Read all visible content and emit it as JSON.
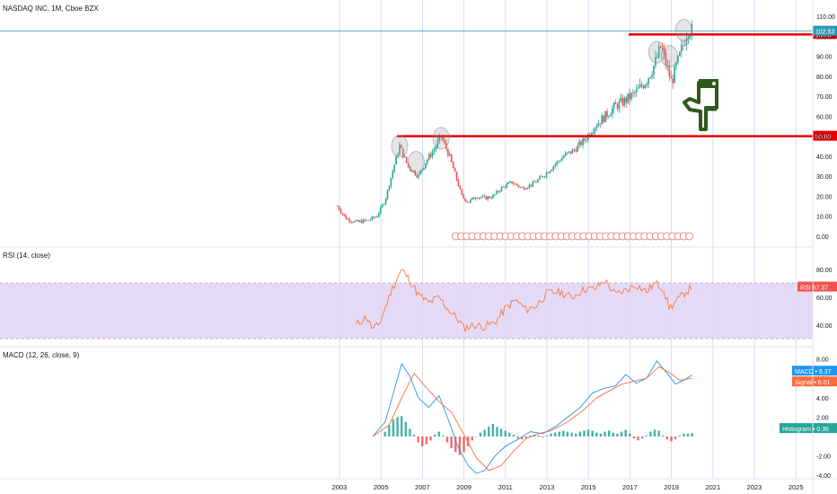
{
  "header": {
    "title": "NASDAQ INC, 1M, Cboe BZX",
    "rsi_label": "RSI (14, close)",
    "macd_label": "MACD (12, 26, close, 9)"
  },
  "colors": {
    "bull": "#26a69a",
    "bear": "#ef5350",
    "rsi": "#f57c41",
    "rsi_band": "#e1d4f3",
    "macd": "#2196f3",
    "signal": "#ff6a3d",
    "hline": "#e50000",
    "grid": "#c8d6f5",
    "last_price": "#2a9db5",
    "hand": "#2e5a1c"
  },
  "chart_data": [
    {
      "type": "candlestick",
      "title": "NASDAQ INC, 1M, Cboe BZX",
      "ylim": [
        -1,
        112
      ],
      "y_ticks": [
        "0.00",
        "10.00",
        "20.00",
        "30.00",
        "40.00",
        "50.00",
        "60.00",
        "70.00",
        "80.00",
        "90.00",
        "100.00",
        "110.00"
      ],
      "x_ticks": [
        "2003",
        "2005",
        "2007",
        "2009",
        "2011",
        "2013",
        "2015",
        "2017",
        "2019",
        "2021",
        "2023",
        "2025"
      ],
      "horizontal_lines": [
        {
          "value": 100.87,
          "label": "100.87"
        },
        {
          "value": 50.0,
          "label": "50.00"
        }
      ],
      "last_price": {
        "value": 102.53,
        "label": "102.53"
      },
      "price_path": [
        [
          2002.9,
          15
        ],
        [
          2003.3,
          9
        ],
        [
          2003.8,
          7
        ],
        [
          2004.4,
          8
        ],
        [
          2004.8,
          10
        ],
        [
          2005.2,
          18
        ],
        [
          2005.6,
          34
        ],
        [
          2005.9,
          45
        ],
        [
          2006.3,
          35
        ],
        [
          2006.8,
          30
        ],
        [
          2007.2,
          38
        ],
        [
          2007.6,
          44
        ],
        [
          2007.9,
          50
        ],
        [
          2008.3,
          40
        ],
        [
          2008.6,
          30
        ],
        [
          2008.9,
          20
        ],
        [
          2009.2,
          17
        ],
        [
          2009.6,
          20
        ],
        [
          2010.0,
          19
        ],
        [
          2010.4,
          20
        ],
        [
          2010.8,
          24
        ],
        [
          2011.3,
          27
        ],
        [
          2011.8,
          24
        ],
        [
          2012.3,
          26
        ],
        [
          2012.8,
          30
        ],
        [
          2013.3,
          35
        ],
        [
          2013.8,
          40
        ],
        [
          2014.3,
          43
        ],
        [
          2014.8,
          48
        ],
        [
          2015.3,
          55
        ],
        [
          2015.8,
          60
        ],
        [
          2016.3,
          65
        ],
        [
          2016.8,
          68
        ],
        [
          2017.3,
          72
        ],
        [
          2017.8,
          78
        ],
        [
          2018.2,
          86
        ],
        [
          2018.5,
          95
        ],
        [
          2018.8,
          84
        ],
        [
          2019.0,
          77
        ],
        [
          2019.4,
          90
        ],
        [
          2019.8,
          104
        ],
        [
          2020.0,
          102.5
        ]
      ]
    },
    {
      "type": "line",
      "title": "RSI (14, close)",
      "ylim": [
        30,
        95
      ],
      "band": [
        33,
        70
      ],
      "y_ticks": [
        "40.00",
        "60.00",
        "80.00"
      ],
      "last_value_label": "RSI",
      "last_value": "67.37",
      "path": [
        [
          2003.8,
          40
        ],
        [
          2004.3,
          46
        ],
        [
          2004.6,
          37
        ],
        [
          2004.9,
          40
        ],
        [
          2005.2,
          52
        ],
        [
          2005.5,
          65
        ],
        [
          2006.0,
          80
        ],
        [
          2006.4,
          72
        ],
        [
          2006.8,
          62
        ],
        [
          2007.3,
          56
        ],
        [
          2007.8,
          60
        ],
        [
          2008.2,
          52
        ],
        [
          2008.6,
          46
        ],
        [
          2009.0,
          38
        ],
        [
          2009.5,
          40
        ],
        [
          2010.0,
          39
        ],
        [
          2010.5,
          42
        ],
        [
          2011.0,
          52
        ],
        [
          2011.5,
          58
        ],
        [
          2012.0,
          51
        ],
        [
          2012.5,
          54
        ],
        [
          2013.0,
          63
        ],
        [
          2013.6,
          64
        ],
        [
          2014.2,
          60
        ],
        [
          2014.8,
          66
        ],
        [
          2015.3,
          66
        ],
        [
          2015.8,
          72
        ],
        [
          2016.3,
          62
        ],
        [
          2016.8,
          65
        ],
        [
          2017.3,
          69
        ],
        [
          2017.8,
          64
        ],
        [
          2018.2,
          70
        ],
        [
          2018.6,
          67
        ],
        [
          2018.9,
          52
        ],
        [
          2019.3,
          58
        ],
        [
          2019.7,
          64
        ],
        [
          2020.0,
          67.4
        ]
      ]
    },
    {
      "type": "line",
      "title": "MACD (12, 26, close, 9)",
      "ylim": [
        -4.8,
        10.2
      ],
      "y_ticks": [
        "-4.00",
        "-2.00",
        "2.00",
        "4.00",
        "6.00",
        "8.00"
      ],
      "series": [
        {
          "name": "MACD",
          "last_value": "6.37",
          "path": [
            [
              2004.6,
              0.0
            ],
            [
              2005.2,
              1.5
            ],
            [
              2005.6,
              4.5
            ],
            [
              2006.0,
              7.5
            ],
            [
              2006.4,
              6.2
            ],
            [
              2006.8,
              4.0
            ],
            [
              2007.3,
              3.0
            ],
            [
              2007.8,
              4.2
            ],
            [
              2008.2,
              2.0
            ],
            [
              2008.7,
              -1.0
            ],
            [
              2009.2,
              -3.0
            ],
            [
              2009.6,
              -3.8
            ],
            [
              2010.0,
              -3.5
            ],
            [
              2010.5,
              -2.0
            ],
            [
              2011.0,
              -1.0
            ],
            [
              2011.6,
              -0.3
            ],
            [
              2012.2,
              0.5
            ],
            [
              2012.8,
              0.3
            ],
            [
              2013.4,
              1.0
            ],
            [
              2014.0,
              2.0
            ],
            [
              2014.6,
              3.0
            ],
            [
              2015.2,
              4.5
            ],
            [
              2015.8,
              5.0
            ],
            [
              2016.3,
              5.2
            ],
            [
              2016.8,
              6.4
            ],
            [
              2017.3,
              5.5
            ],
            [
              2017.8,
              6.0
            ],
            [
              2018.3,
              7.8
            ],
            [
              2018.8,
              6.5
            ],
            [
              2019.2,
              5.4
            ],
            [
              2019.6,
              5.8
            ],
            [
              2020.0,
              6.37
            ]
          ]
        },
        {
          "name": "Signal",
          "last_value": "6.01",
          "path": [
            [
              2004.6,
              0.0
            ],
            [
              2005.4,
              1.2
            ],
            [
              2006.0,
              4.0
            ],
            [
              2006.6,
              6.5
            ],
            [
              2007.2,
              5.0
            ],
            [
              2007.8,
              3.6
            ],
            [
              2008.4,
              2.5
            ],
            [
              2009.0,
              0.2
            ],
            [
              2009.6,
              -2.2
            ],
            [
              2010.2,
              -3.5
            ],
            [
              2010.8,
              -3.0
            ],
            [
              2011.4,
              -1.5
            ],
            [
              2012.0,
              -0.2
            ],
            [
              2012.6,
              0.3
            ],
            [
              2013.2,
              0.6
            ],
            [
              2014.0,
              1.5
            ],
            [
              2014.8,
              2.8
            ],
            [
              2015.4,
              4.0
            ],
            [
              2016.0,
              4.7
            ],
            [
              2016.6,
              5.4
            ],
            [
              2017.2,
              5.7
            ],
            [
              2017.8,
              6.0
            ],
            [
              2018.4,
              7.2
            ],
            [
              2018.9,
              6.6
            ],
            [
              2019.4,
              5.8
            ],
            [
              2020.0,
              6.01
            ]
          ]
        }
      ],
      "histogram_label": "Histogram",
      "histogram_last": "0.36",
      "histogram": [
        [
          2005.2,
          0.5
        ],
        [
          2005.4,
          1.2
        ],
        [
          2005.6,
          1.8
        ],
        [
          2005.8,
          2.0
        ],
        [
          2006.0,
          2.1
        ],
        [
          2006.2,
          1.5
        ],
        [
          2006.4,
          0.8
        ],
        [
          2006.6,
          0.2
        ],
        [
          2006.8,
          -0.6
        ],
        [
          2007.0,
          -1.0
        ],
        [
          2007.2,
          -0.8
        ],
        [
          2007.4,
          -0.4
        ],
        [
          2007.6,
          0.2
        ],
        [
          2007.8,
          0.5
        ],
        [
          2008.0,
          0.1
        ],
        [
          2008.2,
          -0.6
        ],
        [
          2008.4,
          -1.2
        ],
        [
          2008.6,
          -1.6
        ],
        [
          2008.8,
          -1.9
        ],
        [
          2009.0,
          -1.6
        ],
        [
          2009.2,
          -1.0
        ],
        [
          2009.4,
          -0.4
        ],
        [
          2009.6,
          0.0
        ],
        [
          2009.8,
          0.4
        ],
        [
          2010.0,
          0.7
        ],
        [
          2010.2,
          1.0
        ],
        [
          2010.4,
          1.3
        ],
        [
          2010.6,
          1.0
        ],
        [
          2010.8,
          0.8
        ],
        [
          2011.0,
          0.6
        ],
        [
          2011.2,
          0.4
        ],
        [
          2011.4,
          0.2
        ],
        [
          2011.6,
          -0.2
        ],
        [
          2011.8,
          -0.3
        ],
        [
          2012.0,
          -0.2
        ],
        [
          2012.2,
          0.1
        ],
        [
          2012.4,
          0.2
        ],
        [
          2012.6,
          0.1
        ],
        [
          2012.8,
          -0.1
        ],
        [
          2013.0,
          0.1
        ],
        [
          2013.2,
          0.3
        ],
        [
          2013.4,
          0.4
        ],
        [
          2013.6,
          0.5
        ],
        [
          2013.8,
          0.6
        ],
        [
          2014.0,
          0.5
        ],
        [
          2014.2,
          0.4
        ],
        [
          2014.4,
          0.3
        ],
        [
          2014.6,
          0.5
        ],
        [
          2014.8,
          0.6
        ],
        [
          2015.0,
          0.7
        ],
        [
          2015.2,
          0.6
        ],
        [
          2015.4,
          0.4
        ],
        [
          2015.6,
          0.3
        ],
        [
          2015.8,
          0.5
        ],
        [
          2016.0,
          0.6
        ],
        [
          2016.2,
          0.4
        ],
        [
          2016.4,
          0.3
        ],
        [
          2016.6,
          0.5
        ],
        [
          2016.8,
          0.7
        ],
        [
          2017.0,
          0.3
        ],
        [
          2017.2,
          -0.2
        ],
        [
          2017.4,
          -0.4
        ],
        [
          2017.6,
          -0.2
        ],
        [
          2017.8,
          0.1
        ],
        [
          2018.0,
          0.5
        ],
        [
          2018.2,
          0.7
        ],
        [
          2018.4,
          0.6
        ],
        [
          2018.6,
          0.1
        ],
        [
          2018.8,
          -0.3
        ],
        [
          2019.0,
          -0.5
        ],
        [
          2019.2,
          -0.3
        ],
        [
          2019.4,
          0.1
        ],
        [
          2019.6,
          0.3
        ],
        [
          2019.8,
          0.3
        ],
        [
          2020.0,
          0.36
        ]
      ]
    }
  ]
}
